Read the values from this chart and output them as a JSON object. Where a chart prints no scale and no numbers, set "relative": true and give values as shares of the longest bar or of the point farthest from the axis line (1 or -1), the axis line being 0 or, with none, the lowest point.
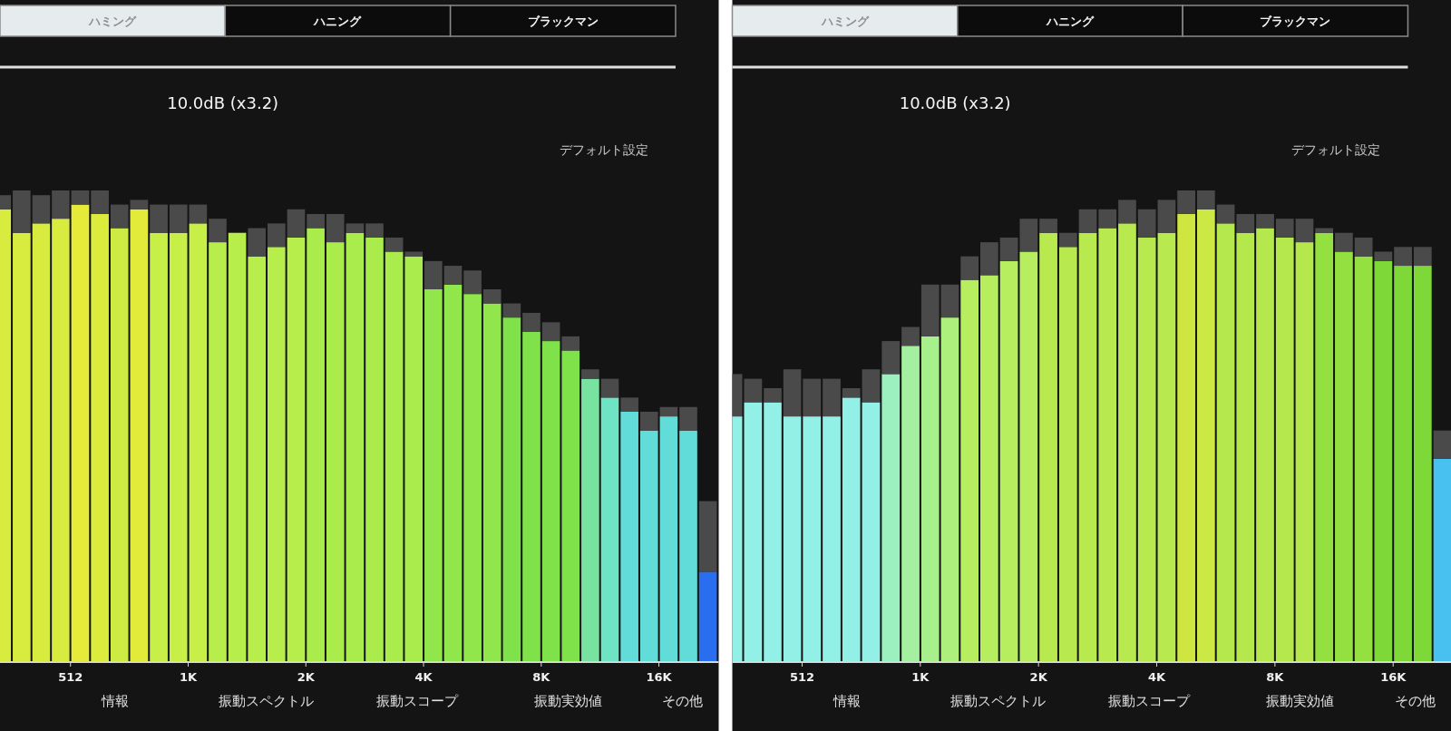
{
  "chart_data": [
    {
      "type": "bar",
      "stacked": true,
      "relative": true,
      "log": "x",
      "xlim": [
        338,
        23300
      ],
      "xticks": [
        {
          "value": 512,
          "label": "512"
        },
        {
          "value": 1024,
          "label": "1K"
        },
        {
          "value": 2048,
          "label": "2K"
        },
        {
          "value": 4096,
          "label": "4K"
        },
        {
          "value": 8192,
          "label": "8K"
        },
        {
          "value": 16384,
          "label": "16K"
        }
      ],
      "x": [
        342,
        384,
        431,
        483,
        542,
        609,
        683,
        767,
        861,
        967,
        1085,
        1218,
        1367,
        1534,
        1722,
        1933,
        2170,
        2436,
        2734,
        3069,
        3445,
        3866,
        4340,
        4871,
        5468,
        6137,
        6889,
        7732,
        8680,
        9742,
        10935,
        12274,
        13777,
        15464,
        17359,
        19484,
        21870
      ],
      "series": [
        {
          "colors": [
            "#d8ec40",
            "#d8ec40",
            "#d8ec40",
            "#d8ec40",
            "#e6ea38",
            "#dcec3c",
            "#ccec44",
            "#e2ea3a",
            "#c8ee48",
            "#c8ee48",
            "#c8ee48",
            "#b8ee4c",
            "#b8ee4c",
            "#b8ee4c",
            "#b8ee4c",
            "#b8ee4c",
            "#aaec4c",
            "#aaec4c",
            "#aaec4c",
            "#aaec4c",
            "#aaec4c",
            "#aaec4c",
            "#90e64a",
            "#90e64a",
            "#90e64a",
            "#90e64a",
            "#80e24a",
            "#80e24a",
            "#80e24a",
            "#80e24a",
            "#78e2a0",
            "#6ee4c4",
            "#62dcd8",
            "#62dcd8",
            "#62dcd8",
            "#62dcd8",
            "#2a6ef0"
          ],
          "values": [
            0.96,
            0.91,
            0.93,
            0.94,
            0.97,
            0.95,
            0.92,
            0.96,
            0.91,
            0.91,
            0.93,
            0.89,
            0.91,
            0.86,
            0.88,
            0.9,
            0.92,
            0.89,
            0.91,
            0.9,
            0.87,
            0.86,
            0.79,
            0.8,
            0.78,
            0.76,
            0.73,
            0.7,
            0.68,
            0.66,
            0.6,
            0.56,
            0.53,
            0.49,
            0.52,
            0.49,
            0.19
          ]
        },
        {
          "color": "#4a4a4a",
          "values": [
            0.03,
            0.09,
            0.06,
            0.06,
            0.03,
            0.05,
            0.05,
            0.02,
            0.06,
            0.06,
            0.04,
            0.05,
            0,
            0.06,
            0.05,
            0.06,
            0.03,
            0.06,
            0.02,
            0.03,
            0.03,
            0.01,
            0.06,
            0.04,
            0.05,
            0.03,
            0.03,
            0.04,
            0.04,
            0.03,
            0.02,
            0.04,
            0.03,
            0.04,
            0.02,
            0.05,
            0.15
          ]
        }
      ],
      "annotations": [
        "ハミング",
        "ハニング",
        "ブラックマン",
        "10.0dB (x3.2)",
        "デフォルト設定",
        "情報",
        "振動スペクトル",
        "振動スコープ",
        "振動実効値",
        "その他"
      ]
    },
    {
      "type": "bar",
      "stacked": true,
      "relative": true,
      "log": "x",
      "xlim": [
        340,
        23000
      ],
      "xticks": [
        {
          "value": 512,
          "label": "512"
        },
        {
          "value": 1024,
          "label": "1K"
        },
        {
          "value": 2048,
          "label": "2K"
        },
        {
          "value": 4096,
          "label": "4K"
        },
        {
          "value": 8192,
          "label": "8K"
        },
        {
          "value": 16384,
          "label": "16K"
        }
      ],
      "x": [
        342,
        384,
        431,
        483,
        542,
        609,
        683,
        767,
        861,
        967,
        1085,
        1218,
        1367,
        1534,
        1722,
        1933,
        2170,
        2436,
        2734,
        3069,
        3445,
        3866,
        4340,
        4871,
        5468,
        6137,
        6889,
        7732,
        8680,
        9742,
        10935,
        12274,
        13777,
        15464,
        17359,
        19484,
        21870
      ],
      "series": [
        {
          "colors": [
            "#92f0e6",
            "#92f0e6",
            "#92f0e6",
            "#92f0e6",
            "#92f0e6",
            "#92f0e6",
            "#92f0e6",
            "#92f0e6",
            "#9cf0c0",
            "#a4f0a0",
            "#a8f08c",
            "#aef07c",
            "#b6ee60",
            "#b6ee60",
            "#b6ee60",
            "#b6ee60",
            "#b8ea50",
            "#b8ea50",
            "#b8ea50",
            "#b8ea50",
            "#b8ea50",
            "#b8ea50",
            "#b8ea50",
            "#d0e640",
            "#cce844",
            "#b4e84c",
            "#b4e84c",
            "#b4e84c",
            "#b4e84c",
            "#b4e84c",
            "#94e040",
            "#94e040",
            "#94e040",
            "#7ed838",
            "#7ed838",
            "#7ed838",
            "#48c0f0"
          ],
          "values": [
            0.52,
            0.55,
            0.55,
            0.52,
            0.52,
            0.52,
            0.56,
            0.55,
            0.61,
            0.67,
            0.69,
            0.73,
            0.81,
            0.82,
            0.85,
            0.87,
            0.91,
            0.88,
            0.91,
            0.92,
            0.93,
            0.9,
            0.91,
            0.95,
            0.96,
            0.93,
            0.91,
            0.92,
            0.9,
            0.89,
            0.91,
            0.87,
            0.86,
            0.85,
            0.84,
            0.84,
            0.43
          ]
        },
        {
          "color": "#4a4a4a",
          "values": [
            0.09,
            0.05,
            0.03,
            0.1,
            0.08,
            0.08,
            0.02,
            0.07,
            0.07,
            0.04,
            0.11,
            0.07,
            0.05,
            0.07,
            0.05,
            0.07,
            0.03,
            0.03,
            0.05,
            0.04,
            0.05,
            0.06,
            0.07,
            0.05,
            0.04,
            0.04,
            0.04,
            0.03,
            0.04,
            0.05,
            0.01,
            0.04,
            0.04,
            0.02,
            0.04,
            0.04,
            0.06
          ]
        }
      ],
      "annotations": [
        "ハミング",
        "ハニング",
        "ブラックマン",
        "10.0dB (x3.2)",
        "デフォルト設定",
        "情報",
        "振動スペクトル",
        "振動スコープ",
        "振動実効値",
        "その他"
      ]
    }
  ]
}
